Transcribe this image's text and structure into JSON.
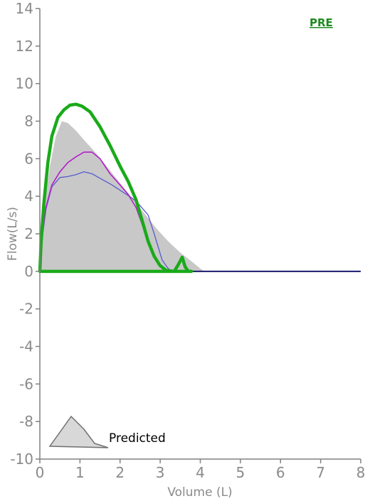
{
  "chart_data": {
    "type": "line",
    "badge": "PRE",
    "xlabel": "Volume (L)",
    "ylabel": "Flow(L/s)",
    "xlim": [
      0,
      8
    ],
    "ylim": [
      -10,
      14
    ],
    "x_ticks": [
      0,
      1,
      2,
      3,
      4,
      5,
      6,
      7,
      8
    ],
    "y_ticks": [
      -10,
      -8,
      -6,
      -4,
      -2,
      0,
      2,
      4,
      6,
      8,
      10,
      12,
      14
    ],
    "legend": {
      "label": "Predicted",
      "placement": "bottom-left"
    },
    "colors": {
      "predicted_fill": "#c8c8c8",
      "green_trial": "#1aaa1a",
      "magenta_trial": "#b020c8",
      "blue_trial": "#5a5ad0",
      "baseline": "#1a1a6e",
      "axis": "#808080",
      "badge": "#1f8a1f"
    },
    "series": [
      {
        "role": "predicted",
        "points": [
          [
            0,
            0
          ],
          [
            0.1,
            3.2
          ],
          [
            0.25,
            5.6
          ],
          [
            0.4,
            7.2
          ],
          [
            0.55,
            8.0
          ],
          [
            0.7,
            7.9
          ],
          [
            0.9,
            7.5
          ],
          [
            1.1,
            7.0
          ],
          [
            1.4,
            6.3
          ],
          [
            1.7,
            5.5
          ],
          [
            2.0,
            4.7
          ],
          [
            2.3,
            3.9
          ],
          [
            2.6,
            3.1
          ],
          [
            2.9,
            2.3
          ],
          [
            3.2,
            1.6
          ],
          [
            3.5,
            1.0
          ],
          [
            3.8,
            0.5
          ],
          [
            4.0,
            0.15
          ],
          [
            4.1,
            0
          ]
        ]
      },
      {
        "role": "green",
        "points": [
          [
            0,
            0
          ],
          [
            0.03,
            1.5
          ],
          [
            0.1,
            3.6
          ],
          [
            0.2,
            5.8
          ],
          [
            0.3,
            7.2
          ],
          [
            0.45,
            8.2
          ],
          [
            0.6,
            8.6
          ],
          [
            0.75,
            8.85
          ],
          [
            0.9,
            8.9
          ],
          [
            1.05,
            8.8
          ],
          [
            1.25,
            8.5
          ],
          [
            1.5,
            7.7
          ],
          [
            1.75,
            6.7
          ],
          [
            2.0,
            5.6
          ],
          [
            2.2,
            4.8
          ],
          [
            2.4,
            3.8
          ],
          [
            2.55,
            2.7
          ],
          [
            2.7,
            1.6
          ],
          [
            2.85,
            0.8
          ],
          [
            3.0,
            0.3
          ],
          [
            3.15,
            0.05
          ],
          [
            3.35,
            0
          ],
          [
            3.45,
            0.35
          ],
          [
            3.55,
            0.75
          ],
          [
            3.62,
            0.25
          ],
          [
            3.7,
            0
          ],
          [
            3.78,
            0
          ]
        ]
      },
      {
        "role": "magenta",
        "points": [
          [
            0,
            0
          ],
          [
            0.05,
            1.8
          ],
          [
            0.15,
            3.4
          ],
          [
            0.3,
            4.6
          ],
          [
            0.5,
            5.3
          ],
          [
            0.7,
            5.8
          ],
          [
            0.9,
            6.1
          ],
          [
            1.1,
            6.35
          ],
          [
            1.3,
            6.35
          ],
          [
            1.5,
            6.0
          ],
          [
            1.75,
            5.2
          ],
          [
            2.0,
            4.6
          ],
          [
            2.2,
            4.1
          ],
          [
            2.4,
            3.4
          ],
          [
            2.55,
            2.5
          ],
          [
            2.7,
            1.5
          ],
          [
            2.85,
            0.8
          ],
          [
            3.0,
            0.3
          ],
          [
            3.15,
            0.05
          ],
          [
            3.25,
            0
          ]
        ]
      },
      {
        "role": "blue",
        "points": [
          [
            0,
            0
          ],
          [
            0.05,
            1.6
          ],
          [
            0.15,
            3.3
          ],
          [
            0.3,
            4.5
          ],
          [
            0.5,
            5.0
          ],
          [
            0.7,
            5.05
          ],
          [
            0.9,
            5.15
          ],
          [
            1.1,
            5.3
          ],
          [
            1.3,
            5.2
          ],
          [
            1.55,
            4.9
          ],
          [
            1.8,
            4.6
          ],
          [
            2.05,
            4.25
          ],
          [
            2.3,
            3.9
          ],
          [
            2.5,
            3.5
          ],
          [
            2.7,
            3.0
          ],
          [
            2.85,
            2.0
          ],
          [
            2.95,
            1.3
          ],
          [
            3.05,
            0.6
          ],
          [
            3.2,
            0.15
          ],
          [
            3.3,
            0
          ]
        ]
      }
    ]
  }
}
